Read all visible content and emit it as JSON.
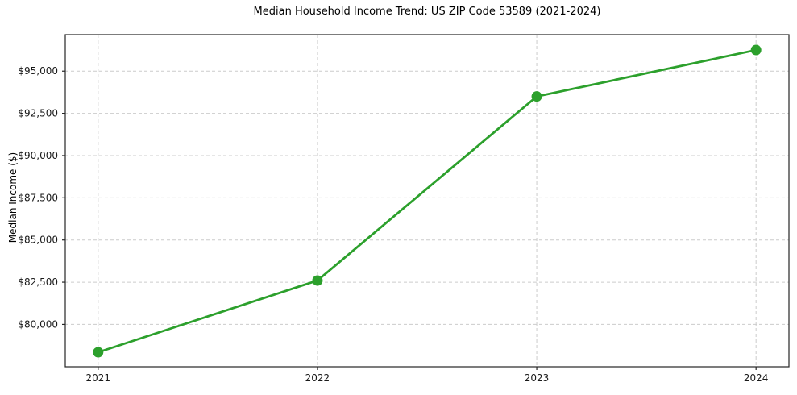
{
  "chart_data": {
    "type": "line",
    "title": "Median Household Income Trend: US ZIP Code 53589 (2021-2024)",
    "xlabel": "",
    "ylabel": "Median Income ($)",
    "x": [
      2021,
      2022,
      2023,
      2024
    ],
    "x_tick_labels": [
      "2021",
      "2022",
      "2023",
      "2024"
    ],
    "values": [
      78350,
      82600,
      93500,
      96250
    ],
    "yticks": [
      80000,
      82500,
      85000,
      87500,
      90000,
      92500,
      95000
    ],
    "ytick_labels": [
      "$80,000",
      "$82,500",
      "$85,000",
      "$87,500",
      "$90,000",
      "$92,500",
      "$95,000"
    ],
    "ylim": [
      77490,
      97160
    ],
    "xlim": [
      2020.85,
      2024.15
    ],
    "grid": true,
    "grid_style": "dashed",
    "legend": false,
    "line_color": "#2ca02c",
    "marker": "circle",
    "marker_radius": 6.5,
    "line_width": 2.8,
    "grid_color": "#cccccc",
    "spine_color": "#262626",
    "tick_label_color": "#1a1a1a",
    "background": "#ffffff"
  }
}
